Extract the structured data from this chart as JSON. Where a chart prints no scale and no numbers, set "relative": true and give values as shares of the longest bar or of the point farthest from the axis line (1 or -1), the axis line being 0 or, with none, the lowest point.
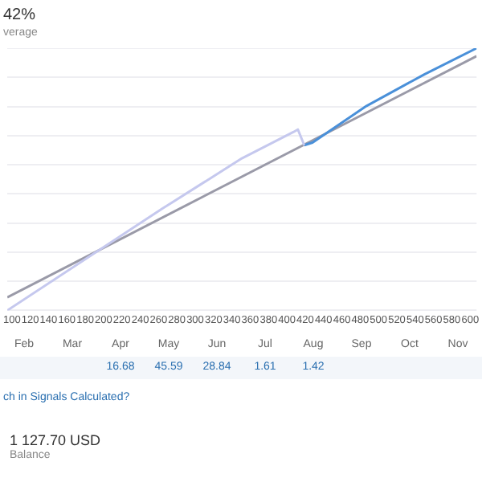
{
  "chart_data": [
    {
      "type": "line",
      "relative": true,
      "grid": "y",
      "legend": false,
      "marker": "none",
      "annotations": [
        "42%",
        "verage"
      ],
      "xlim": [
        95,
        607
      ],
      "xticks": [
        100,
        120,
        140,
        160,
        180,
        200,
        220,
        240,
        260,
        280,
        300,
        320,
        340,
        360,
        380,
        400,
        420,
        440,
        460,
        480,
        500,
        520,
        540,
        560,
        580,
        600
      ],
      "series": [
        {
          "color": "#c5c8ee",
          "x": [
            95,
            265,
            351,
            407,
            412,
            419
          ],
          "values": [
            0,
            0.39,
            0.58,
            0.68,
            0.69,
            0.63
          ]
        },
        {
          "color": "#4a90d9",
          "x": [
            419,
            428,
            487,
            550,
            607
          ],
          "values": [
            0.63,
            0.64,
            0.78,
            0.9,
            1
          ]
        },
        {
          "color": "#9a9aa8",
          "x": [
            95,
            607
          ],
          "values": [
            0.05,
            0.97
          ]
        }
      ]
    },
    {
      "type": "other",
      "categories": [
        "Feb",
        "Mar",
        "Apr",
        "May",
        "Jun",
        "Jul",
        "Aug",
        "Sep",
        "Oct",
        "Nov"
      ],
      "values": [
        null,
        null,
        16.68,
        45.59,
        28.84,
        1.61,
        1.42,
        null,
        null,
        null
      ],
      "data_labels": true,
      "annotations": [
        "ch in Signals Calculated?",
        "1 127.70 USD",
        "Balance"
      ]
    }
  ]
}
